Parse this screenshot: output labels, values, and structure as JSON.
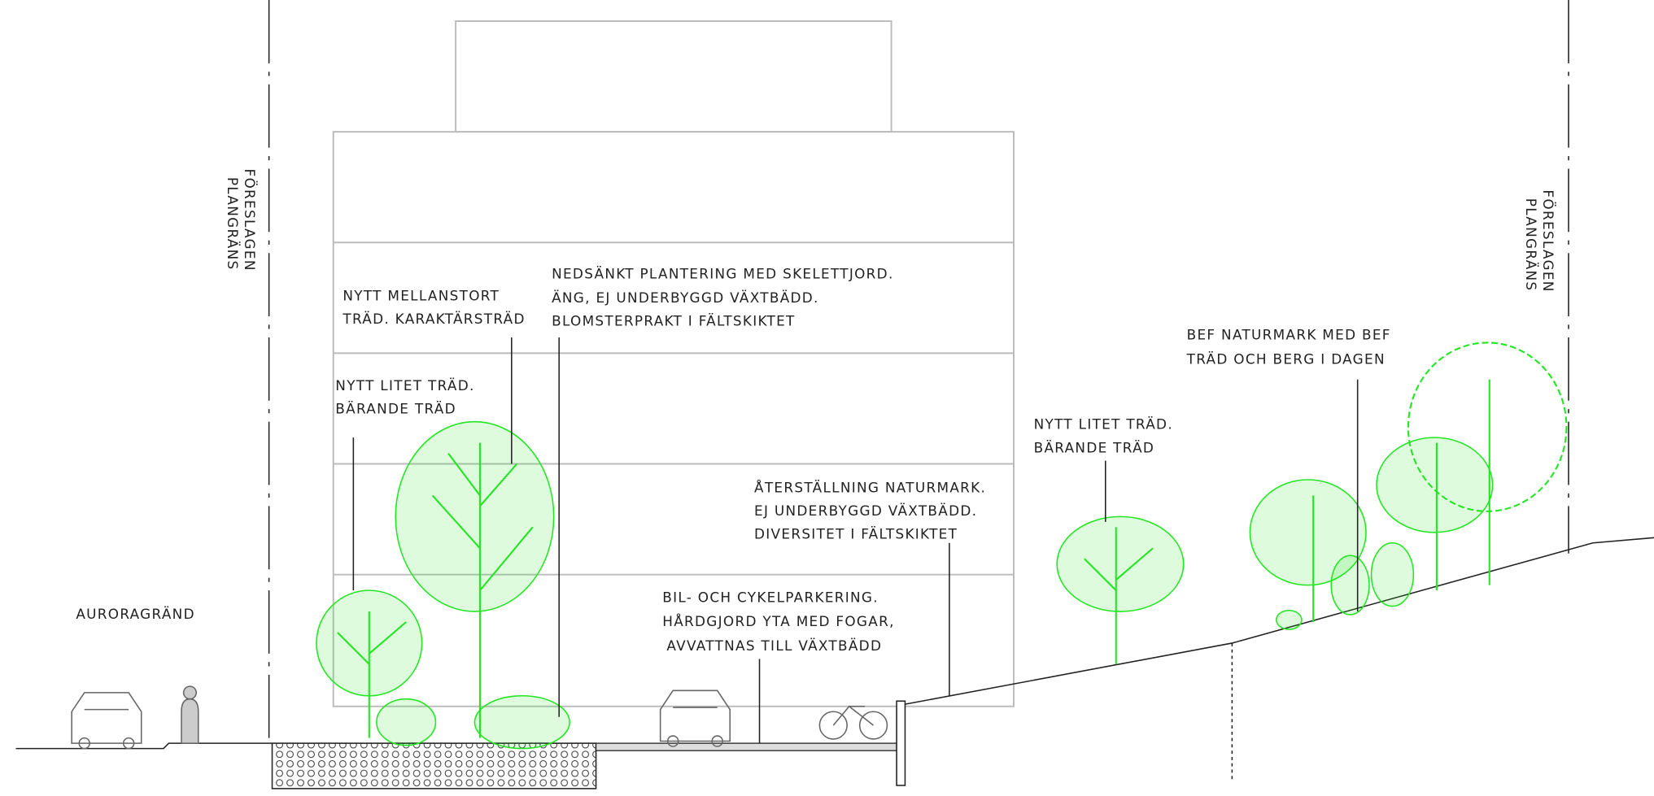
{
  "plan_boundary": {
    "left": [
      "FÖRESLAGEN",
      "PLANGRÄNS"
    ],
    "right": [
      "FÖRESLAGEN",
      "PLANGRÄNS"
    ]
  },
  "street": "AURORAGRÄND",
  "labels": [
    {
      "lines": [
        "NYTT  MELLANSTORT",
        "TRÄD. KARAKTÄRSTRÄD"
      ]
    },
    {
      "lines": [
        "NYTT  LITET  TRÄD.",
        "BÄRANDE  TRÄD"
      ]
    },
    {
      "lines": [
        "NEDSÄNKT PLANTERING MED SKELETTJORD.",
        "ÄNG, EJ UNDERBYGGD VÄXTBÄDD.",
        "BLOMSTERPRAKT I FÄLTSKIKTET"
      ]
    },
    {
      "lines": [
        "ÅTERSTÄLLNING  NATURMARK.",
        "EJ  UNDERBYGGD  VÄXTBÄDD.",
        "DIVERSITET I FÄLTSKIKTET"
      ]
    },
    {
      "lines": [
        "BIL- OCH CYKELPARKERING.",
        "HÅRDGJORD YTA MED FOGAR,",
        "AVVATTNAS TILL VÄXTBÄDD"
      ]
    },
    {
      "lines": [
        "NYTT  LITET  TRÄD.",
        "BÄRANDE  TRÄD"
      ]
    },
    {
      "lines": [
        "BEF  NATURMARK  MED  BEF",
        "TRÄD OCH BERG  I  DAGEN"
      ]
    }
  ]
}
